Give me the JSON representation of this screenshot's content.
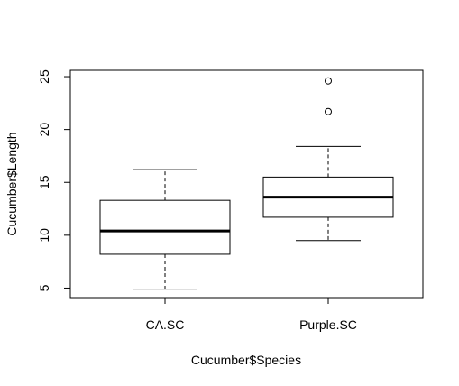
{
  "chart_data": {
    "type": "boxplot",
    "title": "",
    "xlabel": "Cucumber$Species",
    "ylabel": "Cucumber$Length",
    "ylim": [
      4.1,
      25.6
    ],
    "yticks": [
      5,
      10,
      15,
      20,
      25
    ],
    "ytick_labels": [
      "5",
      "10",
      "15",
      "20",
      "25"
    ],
    "grid": false,
    "categories": [
      "CA.SC",
      "Purple.SC"
    ],
    "boxes": [
      {
        "category": "CA.SC",
        "whisker_low": 4.9,
        "q1": 8.2,
        "median": 10.4,
        "q3": 13.3,
        "whisker_high": 16.2,
        "outliers": []
      },
      {
        "category": "Purple.SC",
        "whisker_low": 9.5,
        "q1": 11.7,
        "median": 13.6,
        "q3": 15.5,
        "whisker_high": 18.4,
        "outliers": [
          21.7,
          24.6
        ]
      }
    ]
  }
}
